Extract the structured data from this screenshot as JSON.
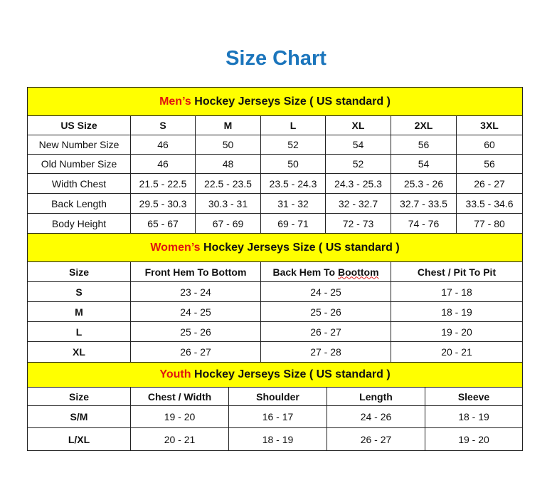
{
  "title": "Size Chart",
  "colors": {
    "title": "#1b75bc",
    "band": "#ffff00",
    "highlight": "#e0140f"
  },
  "men": {
    "band_highlight": "Men’s",
    "band_rest": " Hockey Jerseys Size ( US standard )",
    "headers": [
      "US Size",
      "S",
      "M",
      "L",
      "XL",
      "2XL",
      "3XL"
    ],
    "rows": [
      [
        "New Number Size",
        "46",
        "50",
        "52",
        "54",
        "56",
        "60"
      ],
      [
        "Old Number Size",
        "46",
        "48",
        "50",
        "52",
        "54",
        "56"
      ],
      [
        "Width Chest",
        "21.5 - 22.5",
        "22.5 - 23.5",
        "23.5 - 24.3",
        "24.3 - 25.3",
        "25.3 - 26",
        "26 - 27"
      ],
      [
        "Back Length",
        "29.5 - 30.3",
        "30.3 - 31",
        "31 - 32",
        "32 - 32.7",
        "32.7 - 33.5",
        "33.5 - 34.6"
      ],
      [
        "Body Height",
        "65 - 67",
        "67 - 69",
        "69 - 71",
        "72 - 73",
        "74 - 76",
        "77 - 80"
      ]
    ]
  },
  "women": {
    "band_highlight": "Women’s",
    "band_rest": " Hockey Jerseys Size ( US standard )",
    "headers": [
      "Size",
      "Front Hem To Bottom",
      "Back Hem To ",
      "Boottom",
      "Chest / Pit To Pit"
    ],
    "rows": [
      [
        "S",
        "23 - 24",
        "24 - 25",
        "17 - 18"
      ],
      [
        "M",
        "24 - 25",
        "25 - 26",
        "18 - 19"
      ],
      [
        "L",
        "25 - 26",
        "26 - 27",
        "19 - 20"
      ],
      [
        "XL",
        "26 - 27",
        "27 - 28",
        "20 - 21"
      ]
    ]
  },
  "youth": {
    "band_highlight": "Youth",
    "band_rest": " Hockey Jerseys Size ( US standard )",
    "headers": [
      "Size",
      "Chest / Width",
      "Shoulder",
      "Length",
      "Sleeve"
    ],
    "rows": [
      [
        "S/M",
        "19 - 20",
        "16 - 17",
        "24 - 26",
        "18 - 19"
      ],
      [
        "L/XL",
        "20 - 21",
        "18 - 19",
        "26 - 27",
        "19 - 20"
      ]
    ]
  }
}
